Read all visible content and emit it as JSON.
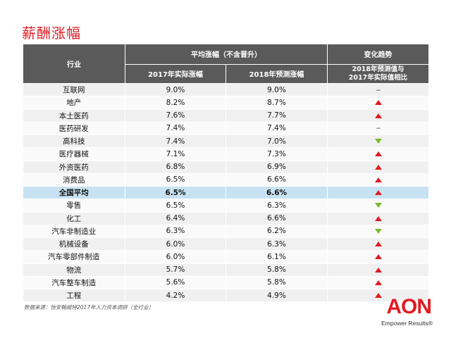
{
  "title": "薪酬涨幅",
  "table": {
    "header": {
      "industry": "行业",
      "avg_increase": "平均涨幅（不含晋升）",
      "trend": "变化趋势",
      "actual_2017": "2017年实际涨幅",
      "forecast_2018": "2018年预测涨幅",
      "trend_sub_line1": "2018年预测值与",
      "trend_sub_line2": "2017年实际值相比"
    },
    "rows": [
      {
        "industry": "互联网",
        "actual_2017": "9.0%",
        "forecast_2018": "9.0%",
        "trend": "flat",
        "trend_text": "--"
      },
      {
        "industry": "地产",
        "actual_2017": "8.2%",
        "forecast_2018": "8.7%",
        "trend": "up",
        "trend_text": ""
      },
      {
        "industry": "本土医药",
        "actual_2017": "7.6%",
        "forecast_2018": "7.7%",
        "trend": "up",
        "trend_text": ""
      },
      {
        "industry": "医药研发",
        "actual_2017": "7.4%",
        "forecast_2018": "7.4%",
        "trend": "flat",
        "trend_text": "--"
      },
      {
        "industry": "高科技",
        "actual_2017": "7.4%",
        "forecast_2018": "7.0%",
        "trend": "down",
        "trend_text": ""
      },
      {
        "industry": "医疗器械",
        "actual_2017": "7.1%",
        "forecast_2018": "7.3%",
        "trend": "up",
        "trend_text": ""
      },
      {
        "industry": "外资医药",
        "actual_2017": "6.8%",
        "forecast_2018": "6.9%",
        "trend": "up",
        "trend_text": ""
      },
      {
        "industry": "消费品",
        "actual_2017": "6.5%",
        "forecast_2018": "6.6%",
        "trend": "up",
        "trend_text": ""
      },
      {
        "industry": "全国平均",
        "actual_2017": "6.5%",
        "forecast_2018": "6.6%",
        "trend": "up",
        "trend_text": "",
        "highlight": true
      },
      {
        "industry": "零售",
        "actual_2017": "6.5%",
        "forecast_2018": "6.3%",
        "trend": "down",
        "trend_text": ""
      },
      {
        "industry": "化工",
        "actual_2017": "6.4%",
        "forecast_2018": "6.6%",
        "trend": "up",
        "trend_text": ""
      },
      {
        "industry": "汽车非制造业",
        "actual_2017": "6.3%",
        "forecast_2018": "6.2%",
        "trend": "down",
        "trend_text": ""
      },
      {
        "industry": "机械设备",
        "actual_2017": "6.0%",
        "forecast_2018": "6.3%",
        "trend": "up",
        "trend_text": ""
      },
      {
        "industry": "汽车零部件制造",
        "actual_2017": "6.0%",
        "forecast_2018": "6.1%",
        "trend": "up",
        "trend_text": ""
      },
      {
        "industry": "物流",
        "actual_2017": "5.7%",
        "forecast_2018": "5.8%",
        "trend": "up",
        "trend_text": ""
      },
      {
        "industry": "汽车整车制造",
        "actual_2017": "5.6%",
        "forecast_2018": "5.8%",
        "trend": "up",
        "trend_text": ""
      },
      {
        "industry": "工程",
        "actual_2017": "4.2%",
        "forecast_2018": "4.9%",
        "trend": "up",
        "trend_text": ""
      }
    ]
  },
  "source": "数据来源：怡安翰威特2017年人力资本调研（全行业）",
  "logo": {
    "word": "AON",
    "tagline": "Empower Results®"
  },
  "colors": {
    "accent": "#e21b22",
    "header_bg": "#5a5a5a",
    "highlight_bg": "#c7e2f2",
    "down": "#7cb832"
  },
  "icons": {
    "up": "red-up-triangle-icon",
    "down": "green-down-triangle-icon"
  }
}
